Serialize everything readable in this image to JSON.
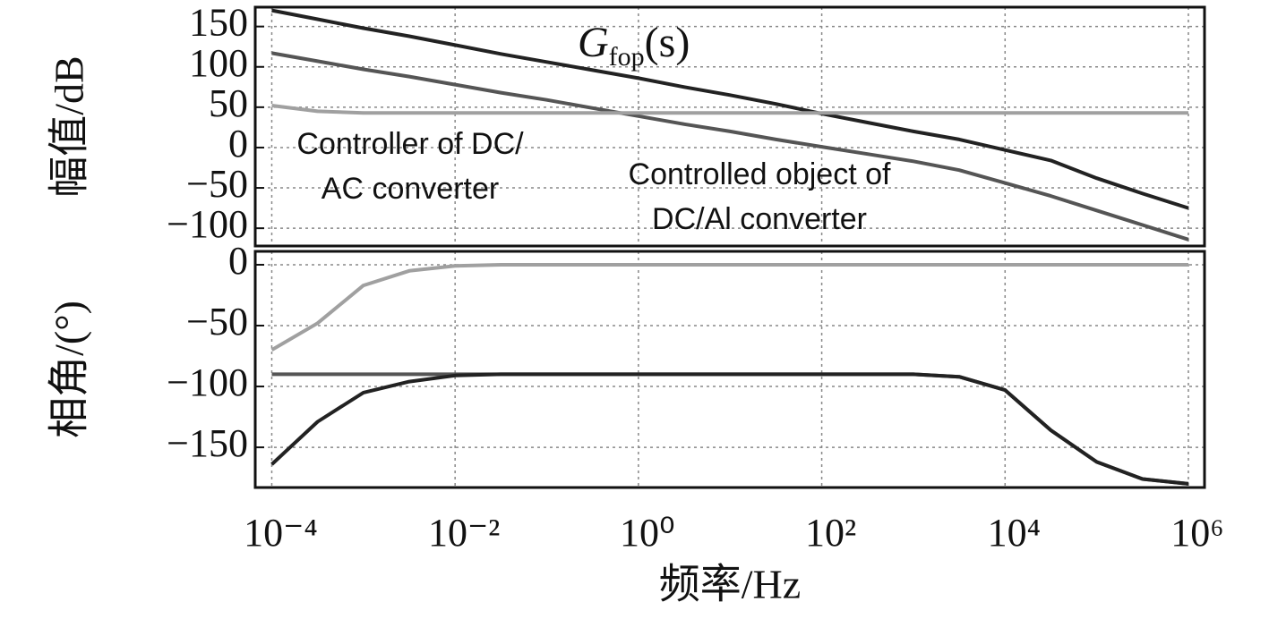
{
  "chart_data": [
    {
      "type": "line",
      "y_label": "幅值/dB",
      "title": {
        "base": "G",
        "sub": "fop",
        "arg": "(s)"
      },
      "annotations": [
        {
          "lines": [
            "Controller of DC/",
            "AC converter"
          ]
        },
        {
          "lines": [
            "Controlled object of",
            "DC/Al converter"
          ]
        }
      ],
      "x": [
        0.0001,
        0.000316,
        0.001,
        0.00316,
        0.01,
        0.0316,
        0.1,
        0.316,
        1,
        3.16,
        10,
        31.6,
        100,
        316,
        1000,
        3160,
        10000,
        31600,
        100000,
        316000,
        1000000
      ],
      "series": [
        {
          "color": "#222222",
          "values": [
            170,
            159,
            148,
            138,
            127,
            116,
            106,
            96,
            86,
            75,
            65,
            54,
            42,
            31,
            20,
            10,
            -3,
            -16,
            -38,
            -57,
            -75
          ]
        },
        {
          "color": "#555555",
          "values": [
            117,
            107,
            97,
            88,
            78,
            68,
            59,
            49,
            39,
            29,
            20,
            10,
            1,
            -8,
            -17,
            -28,
            -44,
            -60,
            -78,
            -96,
            -114
          ]
        },
        {
          "color": "#a0a0a0",
          "values": [
            52,
            45,
            43,
            43,
            43,
            43,
            43,
            43,
            43,
            43,
            43,
            43,
            43,
            43,
            43,
            43,
            43,
            43,
            43,
            43,
            43
          ]
        }
      ],
      "log_x": true,
      "xlim": [
        6.6e-05,
        1500000
      ],
      "ylim": [
        -122,
        174
      ],
      "yticks": [
        150,
        100,
        50,
        0,
        {
          "value": -50,
          "label": "−50"
        },
        {
          "value": -100,
          "label": "−100"
        }
      ],
      "grid": true
    },
    {
      "type": "line",
      "y_label": "相角/(°)",
      "x_label": "频率/Hz",
      "x": [
        0.0001,
        0.000316,
        0.001,
        0.00316,
        0.01,
        0.0316,
        0.1,
        0.316,
        1,
        3.16,
        10,
        31.6,
        100,
        316,
        1000,
        3160,
        10000,
        31600,
        100000,
        316000,
        1000000
      ],
      "series": [
        {
          "color": "#a0a0a0",
          "values": [
            -70,
            -48,
            -17,
            -5,
            -1,
            0,
            0,
            0,
            0,
            0,
            0,
            0,
            0,
            0,
            0,
            0,
            0,
            0,
            0,
            0,
            0
          ]
        },
        {
          "color": "#555555",
          "values": [
            -90,
            -90,
            -90,
            -90,
            -90,
            -90,
            -90,
            -90,
            -90,
            -90,
            -90,
            -90,
            -90,
            -90,
            -90,
            -92,
            -103,
            -136,
            -162,
            -176,
            -180
          ]
        },
        {
          "color": "#222222",
          "values": [
            -164,
            -129,
            -105,
            -96,
            -91,
            -90,
            -90,
            -90,
            -90,
            -90,
            -90,
            -90,
            -90,
            -90,
            -90,
            -92,
            -103,
            -136,
            -162,
            -176,
            -180
          ]
        }
      ],
      "log_x": true,
      "xlim": [
        6.6e-05,
        1500000
      ],
      "ylim": [
        -183,
        11
      ],
      "xticks": [
        {
          "value": 0.0001,
          "label": "10⁻⁴"
        },
        {
          "value": 0.01,
          "label": "10⁻²"
        },
        {
          "value": 1,
          "label": "10⁰"
        },
        {
          "value": 100,
          "label": "10²"
        },
        {
          "value": 10000,
          "label": "10⁴"
        },
        {
          "value": 1000000,
          "label": "10⁶"
        }
      ],
      "yticks": [
        0,
        {
          "value": -50,
          "label": "−50"
        },
        {
          "value": -100,
          "label": "−100"
        },
        {
          "value": -150,
          "label": "−150"
        }
      ],
      "grid": true
    }
  ]
}
